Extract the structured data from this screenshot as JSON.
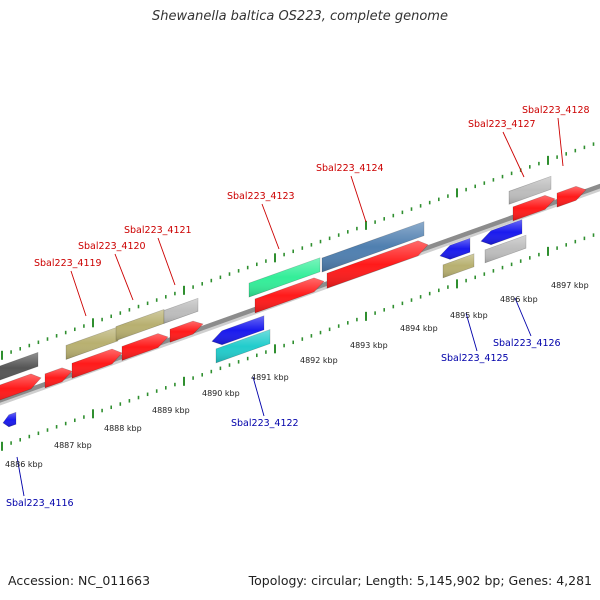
{
  "title": "Shewanella baltica OS223, complete genome",
  "footer": {
    "accession": "Accession: NC_011663",
    "stats": "Topology: circular; Length: 5,145,902 bp; Genes: 4,281"
  },
  "colors": {
    "backbone": "#8c8c8c",
    "tick": "#2f8f2f",
    "label_forward": "#cc0000",
    "label_reverse": "#0000aa",
    "cds": "#ff1a1a",
    "gene_gray": "#bdbdbd",
    "gene_dark": "#555555",
    "gene_olive": "#b8b070",
    "gene_steel": "#4f7fb0",
    "gene_green": "#33ee99",
    "gene_blue": "#1a1aee",
    "gene_cyan": "#22cccc"
  },
  "scale_labels": [
    "4886 kbp",
    "4887 kbp",
    "4888 kbp",
    "4889 kbp",
    "4890 kbp",
    "4891 kbp",
    "4892 kbp",
    "4893 kbp",
    "4894 kbp",
    "4895 kbp",
    "4896 kbp",
    "4897 kbp"
  ],
  "genes_forward": [
    {
      "name": "Sbal223_4119"
    },
    {
      "name": "Sbal223_4120"
    },
    {
      "name": "Sbal223_4121"
    },
    {
      "name": "Sbal223_4123"
    },
    {
      "name": "Sbal223_4124"
    },
    {
      "name": "Sbal223_4127"
    },
    {
      "name": "Sbal223_4128"
    }
  ],
  "genes_reverse": [
    {
      "name": "Sbal223_4116"
    },
    {
      "name": "Sbal223_4122"
    },
    {
      "name": "Sbal223_4125"
    },
    {
      "name": "Sbal223_4126"
    }
  ]
}
